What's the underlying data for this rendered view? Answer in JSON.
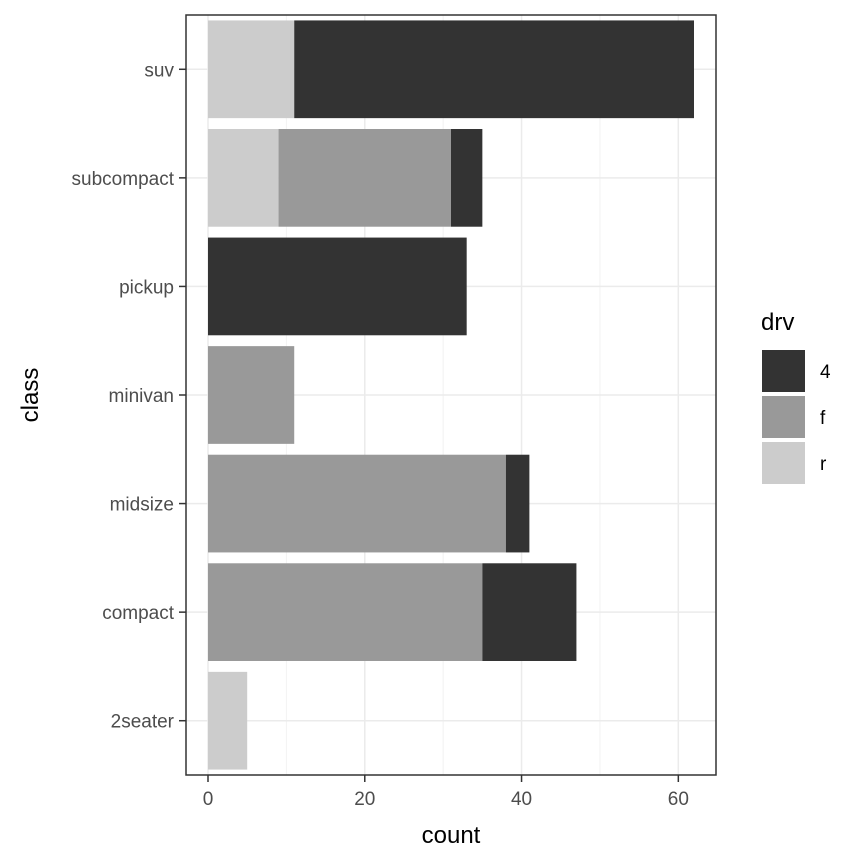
{
  "chart_data": {
    "type": "bar",
    "orientation": "horizontal",
    "stacked": true,
    "title": "",
    "xlabel": "count",
    "ylabel": "class",
    "categories": [
      "2seater",
      "compact",
      "midsize",
      "minivan",
      "pickup",
      "subcompact",
      "suv"
    ],
    "xlim": [
      0,
      65
    ],
    "x_ticks": [
      0,
      20,
      40,
      60
    ],
    "grid": true,
    "legend": {
      "title": "drv",
      "placement": "right"
    },
    "series": [
      {
        "name": "4",
        "color": "#333333",
        "values": [
          0,
          12,
          3,
          0,
          33,
          4,
          51
        ]
      },
      {
        "name": "f",
        "color": "#999999",
        "values": [
          0,
          35,
          38,
          11,
          0,
          22,
          0
        ]
      },
      {
        "name": "r",
        "color": "#cccccc",
        "values": [
          5,
          0,
          0,
          0,
          0,
          9,
          11
        ]
      }
    ]
  }
}
